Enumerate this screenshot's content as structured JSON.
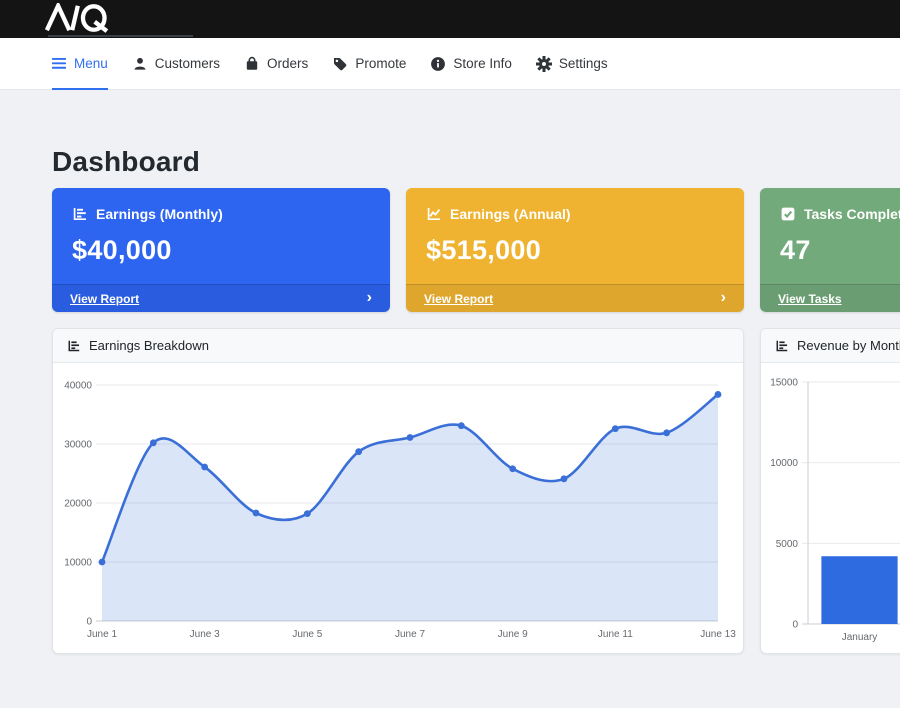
{
  "brand": {
    "logo_text": "MQ"
  },
  "nav": {
    "items": [
      {
        "label": "Menu",
        "icon": "hamburger-icon",
        "active": true
      },
      {
        "label": "Customers",
        "icon": "person-icon",
        "active": false
      },
      {
        "label": "Orders",
        "icon": "bag-icon",
        "active": false
      },
      {
        "label": "Promote",
        "icon": "tag-icon",
        "active": false
      },
      {
        "label": "Store Info",
        "icon": "info-icon",
        "active": false
      },
      {
        "label": "Settings",
        "icon": "gear-icon",
        "active": false
      }
    ]
  },
  "page": {
    "title": "Dashboard"
  },
  "cards": [
    {
      "title": "Earnings (Monthly)",
      "value": "$40,000",
      "link_label": "View Report",
      "color": "#2d64f0",
      "icon": "bar-chart-icon"
    },
    {
      "title": "Earnings (Annual)",
      "value": "$515,000",
      "link_label": "View Report",
      "color": "#efb331",
      "icon": "line-chart-icon"
    },
    {
      "title": "Tasks Completed",
      "value": "47",
      "link_label": "View Tasks",
      "color": "#73aa7b",
      "icon": "check-square-icon"
    }
  ],
  "panels": [
    {
      "title": "Earnings Breakdown",
      "icon": "chart-icon"
    },
    {
      "title": "Revenue by Month",
      "icon": "chart-icon"
    }
  ],
  "chart_data": [
    {
      "type": "area",
      "title": "Earnings Breakdown",
      "x": [
        "June 1",
        "June 2",
        "June 3",
        "June 4",
        "June 5",
        "June 6",
        "June 7",
        "June 8",
        "June 9",
        "June 10",
        "June 11",
        "June 12",
        "June 13"
      ],
      "values": [
        10000,
        30200,
        26100,
        18300,
        18200,
        28700,
        31100,
        33100,
        25800,
        24100,
        32600,
        31900,
        38400
      ],
      "xtick_labels": [
        "June 1",
        "June 3",
        "June 5",
        "June 7",
        "June 9",
        "June 11",
        "June 13"
      ],
      "yticks": [
        0,
        10000,
        20000,
        30000,
        40000
      ],
      "ylim": [
        0,
        40000
      ],
      "grid": true,
      "legend": "none",
      "line_color": "#3a6fd8",
      "fill_color": "rgba(58,111,216,0.18)",
      "point_color": "#3a6fd8",
      "grid_color": "#e8eaec",
      "axis_line_color": "#cbced3",
      "axis_text_color": "#65696e"
    },
    {
      "type": "bar",
      "title": "Revenue by Month",
      "categories": [
        "January"
      ],
      "values": [
        4200
      ],
      "yticks": [
        0,
        5000,
        10000,
        15000
      ],
      "ylim": [
        0,
        15000
      ],
      "grid": true,
      "legend": "none",
      "band_count": 6,
      "bar_color": "#2e6be0",
      "grid_color": "#e8eaec",
      "axis_line_color": "#cbced3",
      "axis_text_color": "#65696e"
    }
  ]
}
